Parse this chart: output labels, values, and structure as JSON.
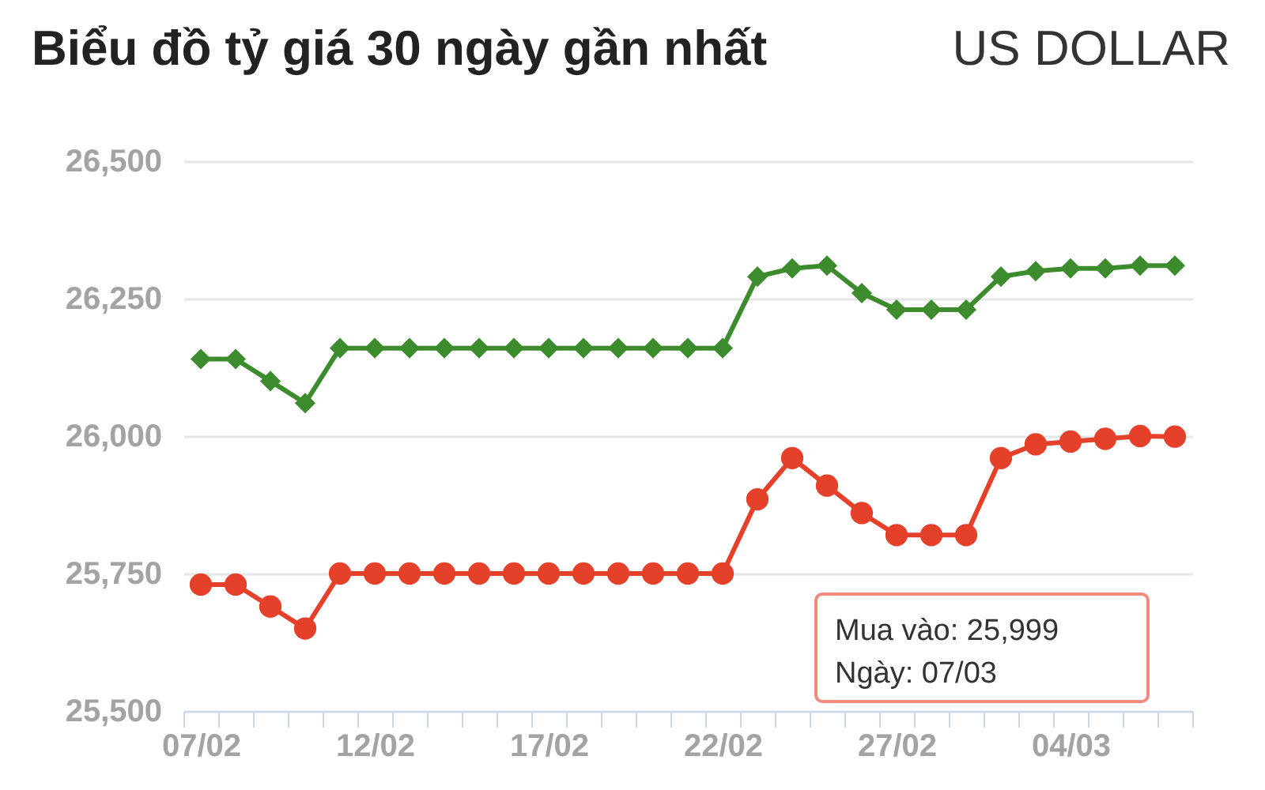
{
  "chart_data": {
    "type": "line",
    "title": "Biểu đồ tỷ giá 30 ngày gần nhất",
    "subtitle": "US DOLLAR",
    "categories": [
      "07/02",
      null,
      null,
      null,
      null,
      "12/02",
      null,
      null,
      null,
      null,
      "17/02",
      null,
      null,
      null,
      null,
      "22/02",
      null,
      null,
      null,
      null,
      "27/02",
      null,
      null,
      null,
      null,
      "04/03",
      null,
      null,
      null
    ],
    "series": [
      {
        "color": "#3c8c2e",
        "marker": "diamond",
        "line_style": "solid",
        "values": [
          26140,
          26140,
          26100,
          26060,
          26160,
          26160,
          26160,
          26160,
          26160,
          26160,
          26160,
          26160,
          26160,
          26160,
          26160,
          26160,
          26290,
          26305,
          26310,
          26260,
          26230,
          26230,
          26230,
          26290,
          26300,
          26305,
          26305,
          26310,
          26310
        ]
      },
      {
        "color": "#e5402a",
        "marker": "circle",
        "line_style": "solid",
        "values": [
          25730,
          25730,
          25690,
          25650,
          25750,
          25750,
          25750,
          25750,
          25750,
          25750,
          25750,
          25750,
          25750,
          25750,
          25750,
          25750,
          25885,
          25960,
          25910,
          25860,
          25820,
          25820,
          25820,
          25960,
          25985,
          25990,
          25995,
          26000,
          25999
        ]
      }
    ],
    "ylim": [
      25500,
      26500
    ],
    "yticks": [
      {
        "value": 25500,
        "label": "25,500"
      },
      {
        "value": 25750,
        "label": "25,750"
      },
      {
        "value": 26000,
        "label": "26,000"
      },
      {
        "value": 26250,
        "label": "26,250"
      },
      {
        "value": 26500,
        "label": "26,500"
      }
    ],
    "grid": "y",
    "annotations": [
      "Mua vào: 25,999",
      "Ngày: 07/03"
    ]
  }
}
